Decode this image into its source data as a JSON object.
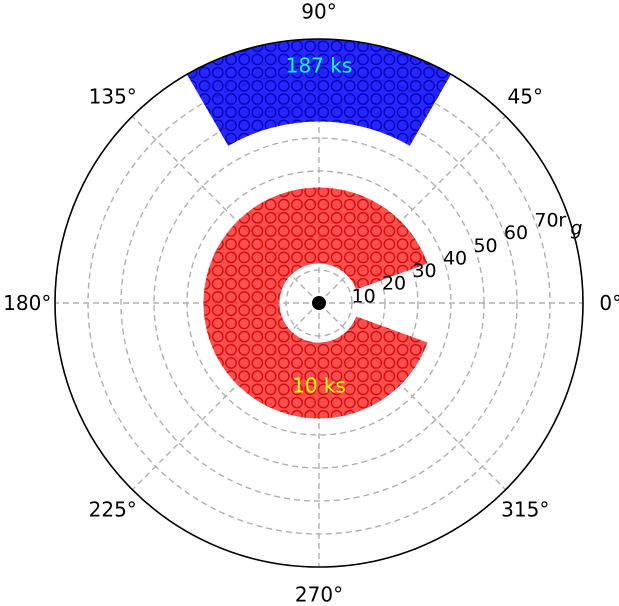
{
  "chart_data": {
    "type": "polar",
    "title": "",
    "angular_ticks": [
      "0°",
      "45°",
      "90°",
      "135°",
      "180°",
      "225°",
      "270°",
      "315°"
    ],
    "angular_tick_values": [
      0,
      45,
      90,
      135,
      180,
      225,
      270,
      315
    ],
    "radial_ticks": [
      "10",
      "20",
      "30",
      "40",
      "50",
      "60",
      "70"
    ],
    "radial_tick_values": [
      10,
      20,
      30,
      40,
      50,
      60,
      70
    ],
    "radial_unit": "r",
    "radial_unit_sub": "g",
    "rmax": 80,
    "grid": true,
    "sectors": [
      {
        "label": "187 ks",
        "r_inner": 55,
        "r_outer": 80,
        "theta_start": 60,
        "theta_end": 120,
        "fill_color": "#0000ff",
        "label_color": "#00ffff",
        "label_r": 72,
        "label_theta": 90
      },
      {
        "label": "10 ks",
        "r_inner": 12,
        "r_outer": 35,
        "theta_start": 20,
        "theta_end": 340,
        "fill_color": "#ff2a2a",
        "label_color": "#ffff00",
        "label_r": 25,
        "label_theta": 270
      }
    ],
    "center_marker": {
      "color": "#000000"
    }
  }
}
